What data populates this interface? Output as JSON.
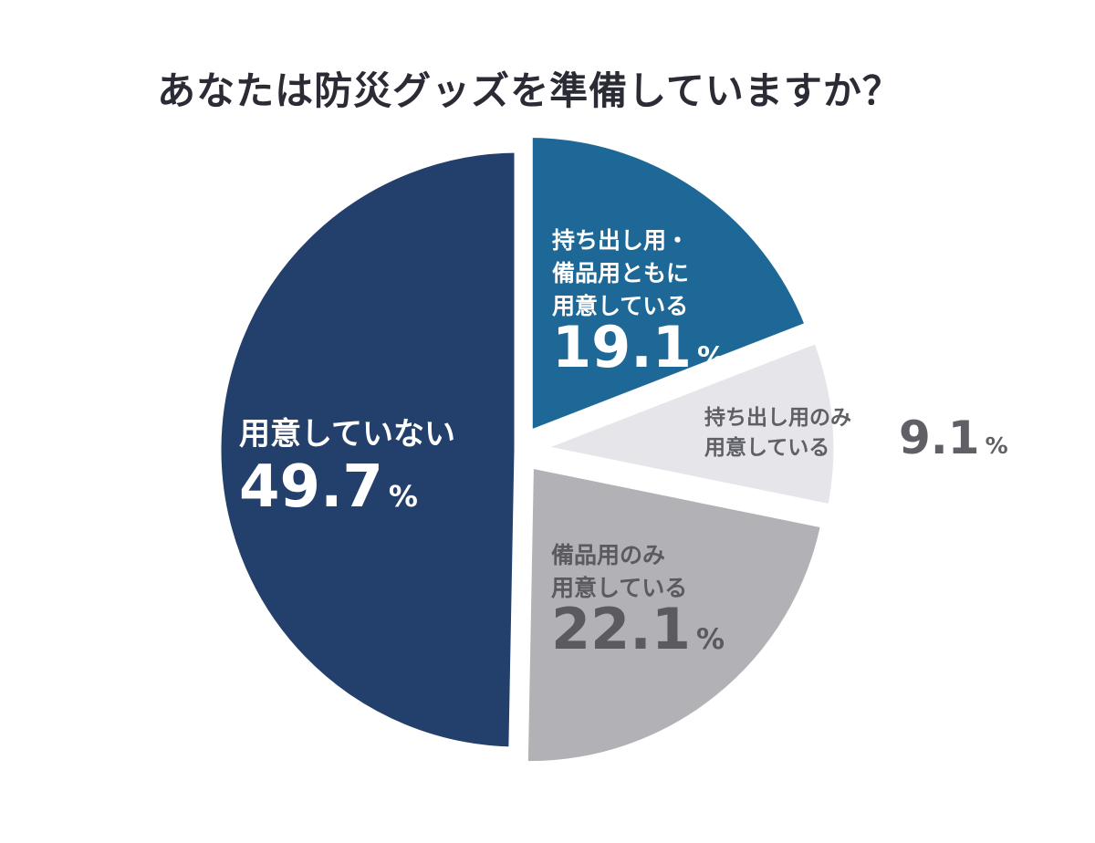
{
  "chart_data": {
    "type": "pie",
    "title": "あなたは防災グッズを準備していますか？",
    "unit": "%",
    "slices": [
      {
        "label_lines": [
          "持ち出し用・",
          "備品用ともに",
          "用意している"
        ],
        "value": 19.1,
        "value_text": "19.1",
        "color": "#1d6896",
        "text_color": "#ffffff"
      },
      {
        "label_lines": [
          "持ち出し用のみ",
          "用意している"
        ],
        "value": 9.1,
        "value_text": "9.1",
        "color": "#e6e5ea",
        "text_color": "#5f5f66"
      },
      {
        "label_lines": [
          "備品用のみ",
          "用意している"
        ],
        "value": 22.1,
        "value_text": "22.1",
        "color": "#b2b1b5",
        "text_color": "#5a5a60"
      },
      {
        "label_lines": [
          "用意していない"
        ],
        "value": 49.7,
        "value_text": "49.7",
        "color": "#233f6b",
        "text_color": "#ffffff"
      }
    ],
    "legend": "none"
  }
}
